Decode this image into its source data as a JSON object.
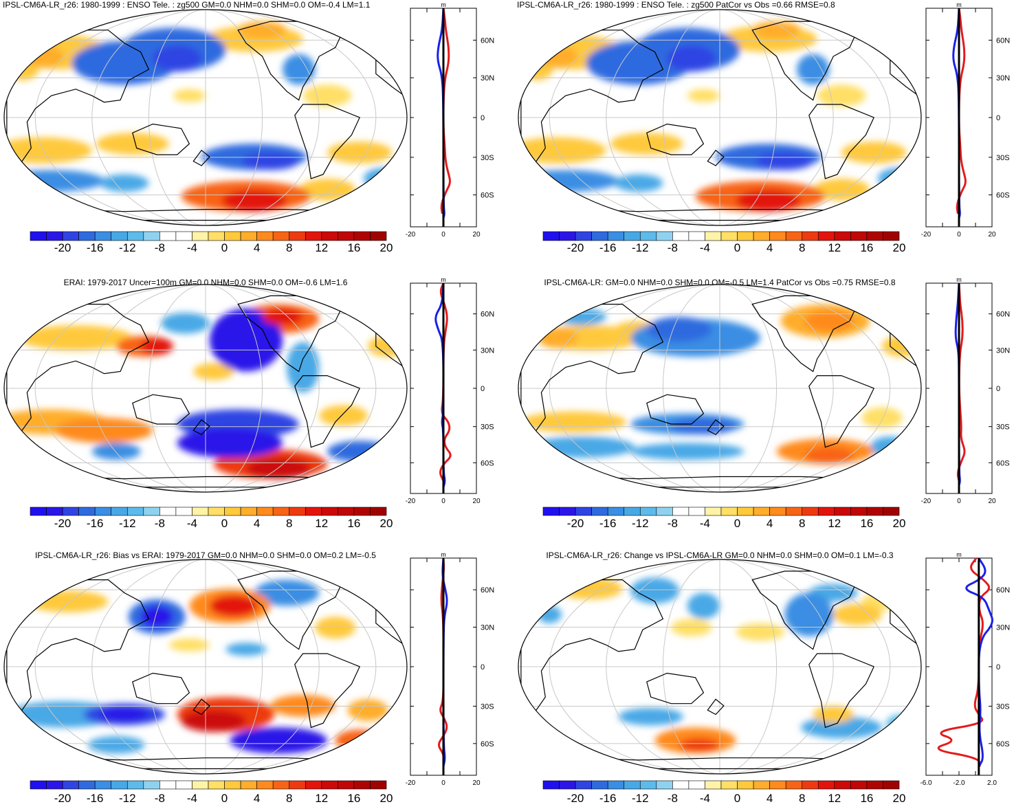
{
  "panels": [
    {
      "title": "IPSL-CM6A-LR_r26: 1980-1999 : ENSO Tele. : zg500 GM=0.0 NHM=0.0 SHM=0.0 OM=-0.4 LM=1.1",
      "profile_unit": "m",
      "profile_lat_labels": [
        "60N",
        "30N",
        "0",
        "30S",
        "60S"
      ],
      "profile_x_labels": [
        "-20",
        "0",
        "20"
      ],
      "colorbar_labels": [
        "-20",
        "-16",
        "-12",
        "-8",
        "-4",
        "0",
        "4",
        "8",
        "12",
        "16",
        "20"
      ]
    },
    {
      "title": "IPSL-CM6A-LR_r26: 1980-1999 : ENSO Tele. : zg500 PatCor vs Obs =0.66 RMSE=0.8",
      "profile_unit": "m",
      "profile_lat_labels": [
        "60N",
        "30N",
        "0",
        "30S",
        "60S"
      ],
      "profile_x_labels": [
        "-20",
        "0",
        "20"
      ],
      "colorbar_labels": [
        "-20",
        "-16",
        "-12",
        "-8",
        "-4",
        "0",
        "4",
        "8",
        "12",
        "16",
        "20"
      ]
    },
    {
      "title": "ERAI: 1979-2017 Uncer=100m GM=0.0 NHM=0.0 SHM=0.0 OM=-0.6 LM=1.6",
      "profile_unit": "m",
      "profile_lat_labels": [
        "60N",
        "30N",
        "0",
        "30S",
        "60S"
      ],
      "profile_x_labels": [
        "-20",
        "0",
        "20"
      ],
      "colorbar_labels": [
        "-20",
        "-16",
        "-12",
        "-8",
        "-4",
        "0",
        "4",
        "8",
        "12",
        "16",
        "20"
      ]
    },
    {
      "title": "IPSL-CM6A-LR: GM=0.0 NHM=0.0 SHM=0.0 OM=-0.5 LM=1.4 PatCor vs Obs =0.75 RMSE=0.8",
      "profile_unit": "m",
      "profile_lat_labels": [
        "60N",
        "30N",
        "0",
        "30S",
        "60S"
      ],
      "profile_x_labels": [
        "-20",
        "0",
        "20"
      ],
      "colorbar_labels": [
        "-20",
        "-16",
        "-12",
        "-8",
        "-4",
        "0",
        "4",
        "8",
        "12",
        "16",
        "20"
      ]
    },
    {
      "title": "IPSL-CM6A-LR_r26: Bias vs ERAI: 1979-2017 GM=0.0 NHM=0.0 SHM=0.0 OM=0.2 LM=-0.5",
      "profile_unit": "m",
      "profile_lat_labels": [
        "60N",
        "30N",
        "0",
        "30S",
        "60S"
      ],
      "profile_x_labels": [
        "-20",
        "0",
        "20"
      ],
      "colorbar_labels": [
        "-20",
        "-16",
        "-12",
        "-8",
        "-4",
        "0",
        "4",
        "8",
        "12",
        "16",
        "20"
      ]
    },
    {
      "title": "IPSL-CM6A-LR_r26: Change vs IPSL-CM6A-LR GM=0.0 NHM=0.0 SHM=0.0 OM=0.1 LM=-0.3",
      "profile_unit": "m",
      "profile_lat_labels": [
        "60N",
        "30N",
        "0",
        "30S",
        "60S"
      ],
      "profile_x_labels": [
        "-6.0",
        "-2.0",
        "2.0"
      ],
      "colorbar_labels": [
        "-20",
        "-16",
        "-12",
        "-8",
        "-4",
        "0",
        "4",
        "8",
        "12",
        "16",
        "20"
      ]
    }
  ],
  "colors": {
    "palette": [
      "#2b16e8",
      "#2f44e3",
      "#2f6bdf",
      "#3a8ee3",
      "#48a8e6",
      "#5cbbea",
      "#8fd2f0",
      "#ffffff",
      "#ffffff",
      "#fff3a8",
      "#ffdf66",
      "#ffc93c",
      "#ffad2b",
      "#ff8a1e",
      "#f86415",
      "#ee3a10",
      "#e3140c",
      "#cc0808"
    ],
    "land_outline": "#000000",
    "graticule": "#c8c8c8",
    "nh_line": "#e41a1c",
    "sh_line": "#1a20e8",
    "zonal_mean": "#000000"
  }
}
